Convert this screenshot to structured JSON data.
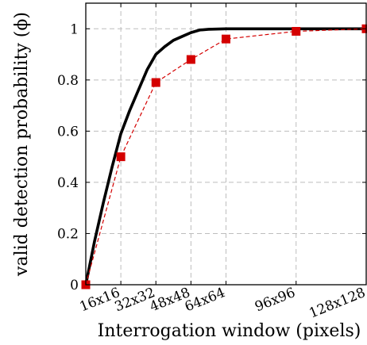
{
  "chart_data": {
    "type": "line",
    "title": "",
    "xlabel": "Interrogation window (pixels)",
    "ylabel": "valid detection probability (ϕ)",
    "x_scale": "categorical positions by window size",
    "categories": [
      "16x16",
      "32x32",
      "48x48",
      "64x64",
      "96x96",
      "128x128"
    ],
    "x_positions": [
      16,
      32,
      48,
      64,
      96,
      128
    ],
    "xlim": [
      0,
      128
    ],
    "ylim": [
      0,
      1.1
    ],
    "y_ticks": [
      0,
      0.2,
      0.4,
      0.6,
      0.8,
      1
    ],
    "y_tick_labels": [
      "0",
      "0.2",
      "0.4",
      "0.6",
      "0.8",
      "1"
    ],
    "grid": true,
    "legend": "none",
    "series": [
      {
        "style": "solid",
        "color": "#000000",
        "x": [
          0,
          4,
          8,
          12,
          16,
          20,
          24,
          28,
          32,
          36,
          40,
          44,
          48,
          52,
          56,
          64,
          72,
          80,
          96,
          112,
          128
        ],
        "y": [
          0,
          0.17,
          0.32,
          0.46,
          0.59,
          0.68,
          0.76,
          0.84,
          0.9,
          0.93,
          0.955,
          0.97,
          0.985,
          0.995,
          0.998,
          1.0,
          1.0,
          1.0,
          1.0,
          1.0,
          1.0
        ]
      },
      {
        "style": "dashed with square markers",
        "color": "#d40000",
        "x": [
          0,
          16,
          32,
          48,
          64,
          96,
          128
        ],
        "y": [
          0,
          0.5,
          0.79,
          0.88,
          0.96,
          0.99,
          1.0
        ]
      }
    ]
  }
}
